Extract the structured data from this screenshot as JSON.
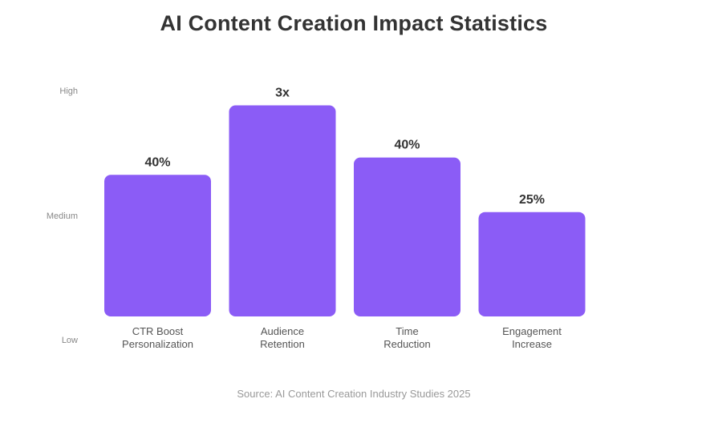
{
  "colors": {
    "bar": "#8b5cf6",
    "title": "#333333",
    "value_label": "#333333",
    "category_label": "#555555",
    "y_tick": "#888888",
    "source": "#999999"
  },
  "chart_data": {
    "type": "bar",
    "title": "AI Content Creation Impact Statistics",
    "xlabel": "",
    "ylabel": "",
    "y_ticks": [
      "High",
      "Medium",
      "Low"
    ],
    "categories": [
      [
        "CTR Boost",
        "Personalization"
      ],
      [
        "Audience",
        "Retention"
      ],
      [
        "Time",
        "Reduction"
      ],
      [
        "Engagement",
        "Increase"
      ]
    ],
    "value_labels": [
      "40%",
      "3x",
      "40%",
      "25%"
    ],
    "values": [
      0.57,
      0.85,
      0.64,
      0.42
    ],
    "value_scale": "relative (0 = Low, 0.5 = Medium, 1 = High)",
    "grid": false,
    "legend": "none",
    "source": "Source: AI Content Creation Industry Studies 2025"
  }
}
